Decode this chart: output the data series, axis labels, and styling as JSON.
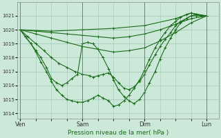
{
  "bg_color": "#cce8d8",
  "grid_color": "#9ec8b0",
  "line_color": "#1a6b1a",
  "marker": "+",
  "title": "Pression niveau de la mer( hPa )",
  "ylim": [
    1013.6,
    1022.0
  ],
  "yticks": [
    1014,
    1015,
    1016,
    1017,
    1018,
    1019,
    1020,
    1021
  ],
  "xtick_labels": [
    "Ven",
    "Sam",
    "Dim",
    "Lun"
  ],
  "xtick_positions": [
    0,
    1,
    2,
    3
  ],
  "xlim": [
    -0.05,
    3.2
  ],
  "series": [
    {
      "x": [
        0.0,
        0.5,
        1.0,
        1.5,
        2.0,
        2.5,
        2.75,
        3.0
      ],
      "y": [
        1020.0,
        1019.9,
        1020.0,
        1020.1,
        1020.3,
        1020.8,
        1021.2,
        1021.0
      ]
    },
    {
      "x": [
        0.0,
        0.25,
        0.5,
        0.75,
        1.0,
        1.25,
        1.5,
        1.75,
        2.0,
        2.25,
        2.5,
        2.75,
        3.0
      ],
      "y": [
        1020.0,
        1019.9,
        1019.8,
        1019.7,
        1019.6,
        1019.5,
        1019.4,
        1019.5,
        1019.7,
        1020.0,
        1020.4,
        1020.8,
        1021.0
      ]
    },
    {
      "x": [
        0.0,
        0.25,
        0.5,
        0.75,
        1.0,
        1.25,
        1.5,
        1.75,
        2.0,
        2.25,
        2.5,
        2.75,
        3.0
      ],
      "y": [
        1020.0,
        1019.7,
        1019.4,
        1019.1,
        1018.8,
        1018.6,
        1018.4,
        1018.5,
        1018.7,
        1019.2,
        1019.8,
        1020.5,
        1021.0
      ]
    },
    {
      "x": [
        0.0,
        0.12,
        0.25,
        0.38,
        0.5,
        0.62,
        0.75,
        0.88,
        1.0,
        1.12,
        1.17,
        1.25,
        1.33,
        1.42,
        1.5,
        1.58,
        1.67,
        1.75,
        1.83,
        1.92,
        2.0,
        2.08,
        2.17,
        2.25,
        2.33,
        2.42,
        2.5,
        2.58,
        2.67,
        2.75,
        2.83,
        2.92,
        3.0
      ],
      "y": [
        1020.0,
        1019.5,
        1019.0,
        1018.5,
        1018.0,
        1017.6,
        1017.3,
        1017.0,
        1016.8,
        1016.7,
        1016.6,
        1016.7,
        1016.8,
        1016.9,
        1016.6,
        1016.2,
        1015.8,
        1015.7,
        1015.9,
        1016.3,
        1016.8,
        1017.5,
        1018.2,
        1018.8,
        1019.3,
        1019.8,
        1020.3,
        1020.6,
        1020.8,
        1021.0,
        1021.0,
        1021.0,
        1021.0
      ]
    },
    {
      "x": [
        0.0,
        0.08,
        0.17,
        0.25,
        0.33,
        0.42,
        0.5,
        0.58,
        0.67,
        0.75,
        0.83,
        0.92,
        1.0,
        1.08,
        1.17,
        1.25,
        1.33,
        1.42,
        1.5,
        1.58,
        1.67,
        1.75,
        1.83,
        1.92,
        2.0,
        2.08,
        2.17,
        2.25,
        2.33,
        2.42,
        2.5,
        2.58,
        2.67,
        2.75,
        2.83,
        2.92,
        3.0
      ],
      "y": [
        1020.0,
        1019.5,
        1019.0,
        1018.5,
        1018.0,
        1017.3,
        1016.5,
        1016.2,
        1016.0,
        1016.2,
        1016.5,
        1016.8,
        1019.0,
        1019.1,
        1019.0,
        1018.6,
        1018.0,
        1017.2,
        1016.4,
        1015.7,
        1015.2,
        1014.9,
        1014.7,
        1015.0,
        1015.5,
        1016.2,
        1017.0,
        1017.9,
        1018.7,
        1019.4,
        1020.0,
        1020.5,
        1020.8,
        1021.0,
        1021.1,
        1021.0,
        1021.0
      ]
    },
    {
      "x": [
        0.0,
        0.08,
        0.17,
        0.25,
        0.33,
        0.42,
        0.5,
        0.58,
        0.67,
        0.75,
        0.83,
        0.92,
        1.0,
        1.08,
        1.17,
        1.25,
        1.33,
        1.42,
        1.5,
        1.58,
        1.67,
        1.75,
        1.83,
        1.92,
        2.0,
        2.08,
        2.17,
        2.25,
        2.33,
        2.42,
        2.5,
        2.58,
        2.67,
        2.75,
        2.83,
        2.92,
        3.0
      ],
      "y": [
        1020.0,
        1019.5,
        1019.0,
        1018.4,
        1017.7,
        1017.0,
        1016.3,
        1015.7,
        1015.3,
        1015.0,
        1014.9,
        1014.8,
        1014.8,
        1014.9,
        1015.1,
        1015.3,
        1015.1,
        1014.9,
        1014.5,
        1014.6,
        1014.9,
        1015.3,
        1015.8,
        1016.4,
        1017.1,
        1017.9,
        1018.7,
        1019.3,
        1019.8,
        1020.3,
        1020.6,
        1020.9,
        1021.1,
        1021.2,
        1021.1,
        1021.0,
        1021.0
      ]
    }
  ]
}
